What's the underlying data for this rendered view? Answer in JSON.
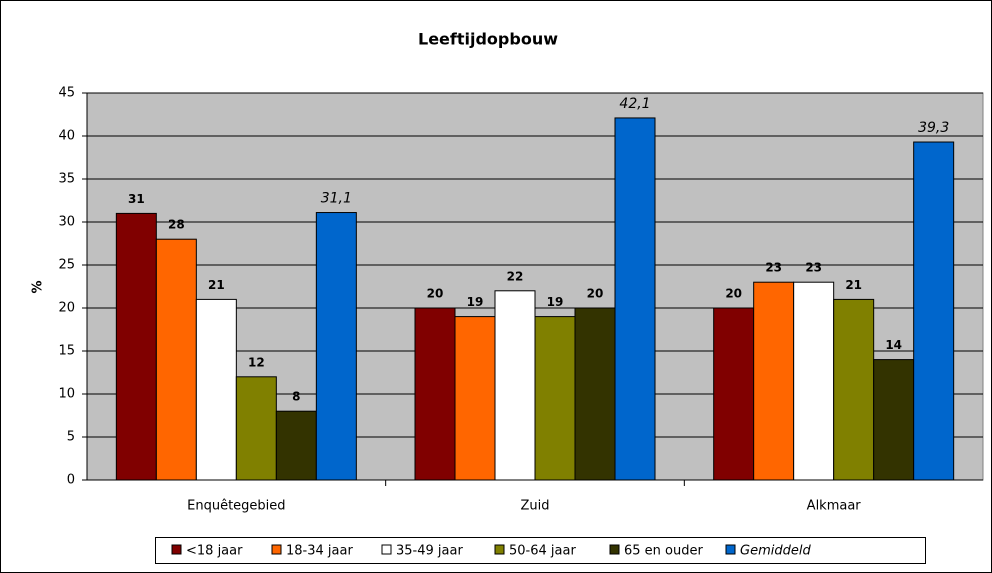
{
  "chart_data": {
    "type": "bar",
    "title": "Leeftijdopbouw",
    "y_label": "%",
    "categories": [
      "Enquêtegebied",
      "Zuid",
      "Alkmaar"
    ],
    "series": [
      {
        "name": "<18 jaar",
        "color": "#800000",
        "values": [
          31,
          20,
          20
        ]
      },
      {
        "name": "18-34 jaar",
        "color": "#ff6600",
        "values": [
          28,
          19,
          23
        ]
      },
      {
        "name": "35-49 jaar",
        "color": "#ffffff",
        "values": [
          21,
          22,
          23
        ]
      },
      {
        "name": "50-64 jaar",
        "color": "#808000",
        "values": [
          12,
          19,
          21
        ]
      },
      {
        "name": "65 en ouder",
        "color": "#333300",
        "values": [
          8,
          20,
          14
        ]
      },
      {
        "name": "Gemiddeld",
        "color": "#0066cc",
        "italic": true,
        "values": [
          31.1,
          42.1,
          39.3
        ],
        "value_labels": [
          "31,1",
          "42,1",
          "39,3"
        ]
      }
    ],
    "ylim": [
      0,
      45
    ],
    "yticks": [
      0,
      5,
      10,
      15,
      20,
      25,
      30,
      35,
      40,
      45
    ],
    "grid": true,
    "legend": "bottom"
  }
}
